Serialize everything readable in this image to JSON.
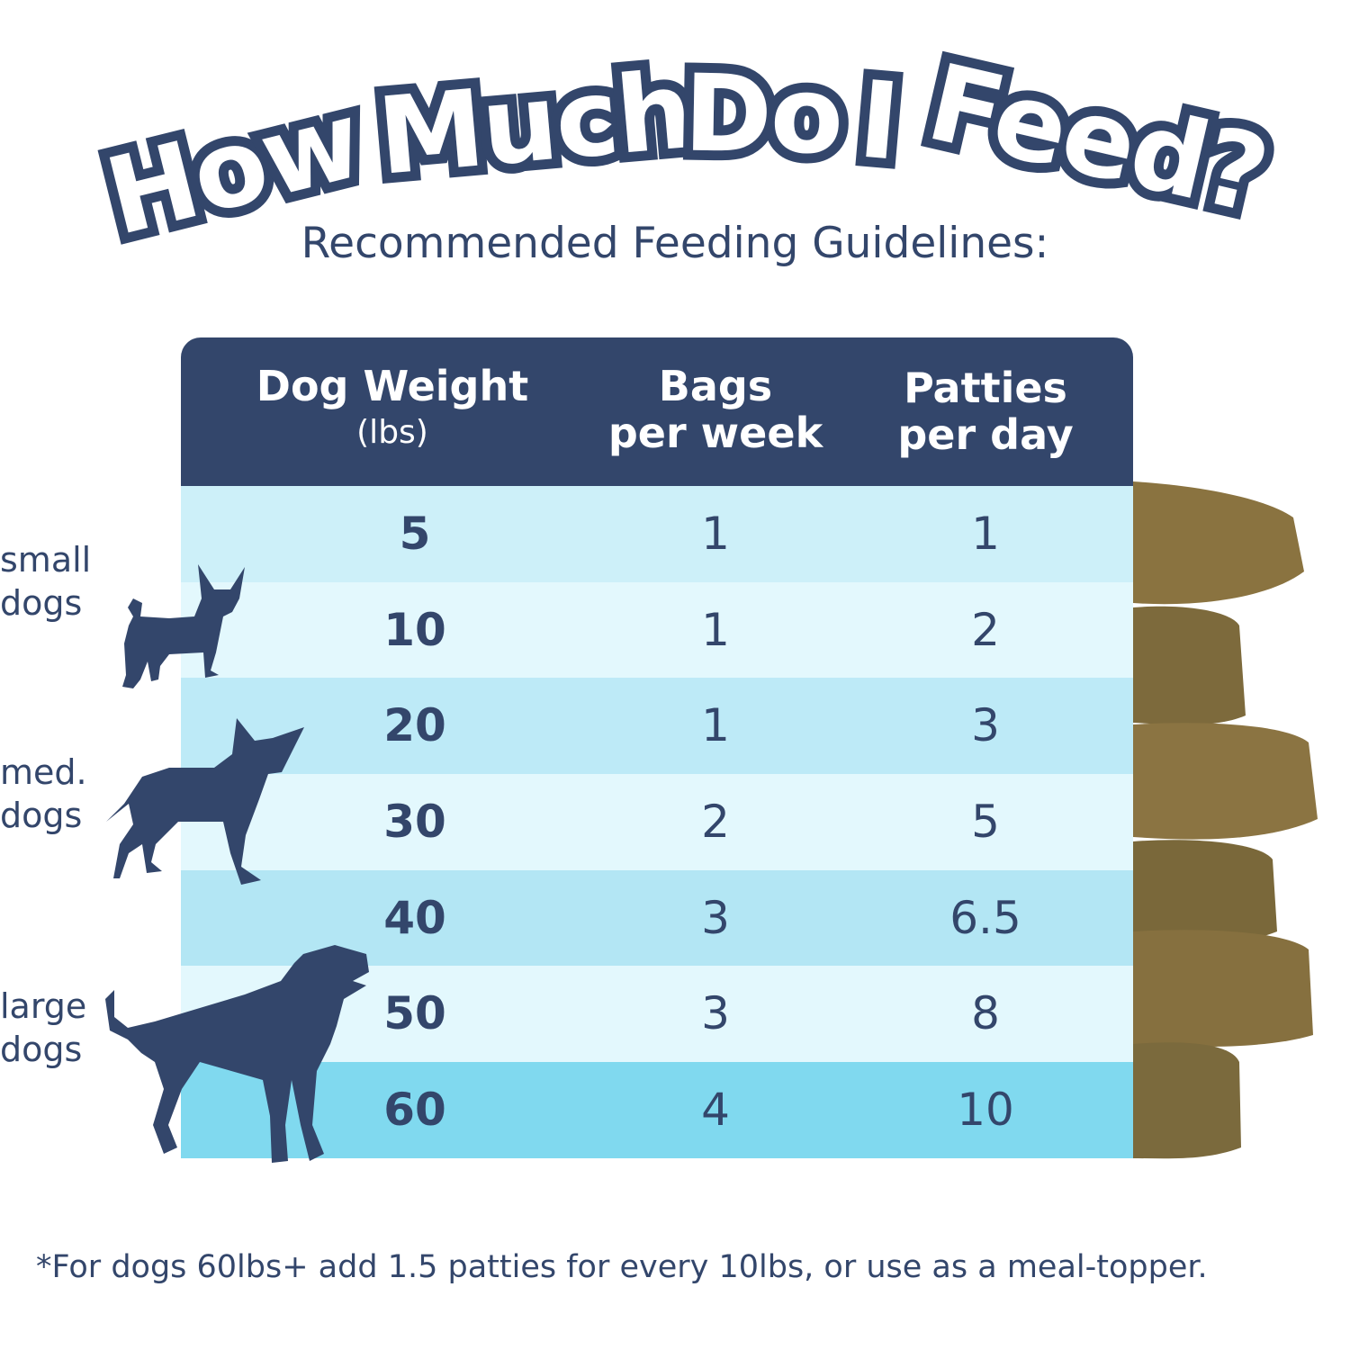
{
  "title": {
    "words": [
      "How",
      "Much",
      "Do",
      "I",
      "Feed?"
    ]
  },
  "subtitle": "Recommended Feeding Guidelines:",
  "table": {
    "headers": [
      {
        "main": "Dog Weight",
        "sub": "(lbs)"
      },
      {
        "main": "Bags",
        "sub": "per week"
      },
      {
        "main": "Patties",
        "sub": "per day"
      }
    ],
    "rows": [
      [
        "5",
        "1",
        "1"
      ],
      [
        "10",
        "1",
        "2"
      ],
      [
        "20",
        "1",
        "3"
      ],
      [
        "30",
        "2",
        "5"
      ],
      [
        "40",
        "3",
        "6.5"
      ],
      [
        "50",
        "3",
        "8"
      ],
      [
        "60",
        "4",
        "10"
      ]
    ],
    "row_colors": [
      "#cdf0f9",
      "#e3f8fd",
      "#bdeaf7",
      "#e3f8fd",
      "#b3e6f4",
      "#e3f8fd",
      "#80d9ef"
    ],
    "header_color": "#33466b"
  },
  "labels": {
    "small": [
      "small",
      "dogs"
    ],
    "medium": [
      "med.",
      "dogs"
    ],
    "large": [
      "large",
      "dogs"
    ]
  },
  "footnote": "*For dogs 60lbs+ add 1.5 patties for every 10lbs, or use as a meal-topper."
}
